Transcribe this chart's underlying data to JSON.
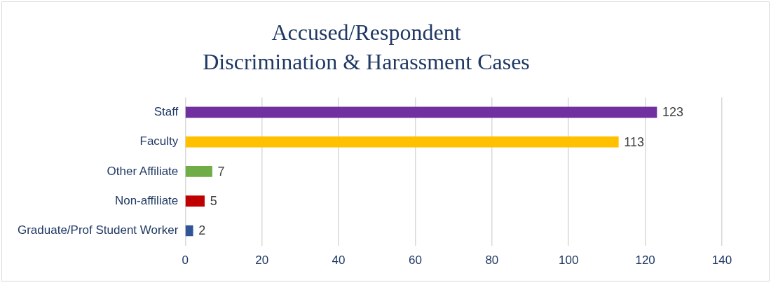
{
  "chart_data": {
    "type": "bar",
    "orientation": "horizontal",
    "title": "Accused/Respondent\nDiscrimination & Harassment Cases",
    "categories": [
      "Staff",
      "Faculty",
      "Other Affiliate",
      "Non-affiliate",
      "Graduate/Prof Student Worker"
    ],
    "values": [
      123,
      113,
      7,
      5,
      2
    ],
    "colors": [
      "#7030a0",
      "#ffc000",
      "#70ad47",
      "#c00000",
      "#2f5597"
    ],
    "xlim": [
      0,
      140
    ],
    "xticks": [
      0,
      20,
      40,
      60,
      80,
      100,
      120,
      140
    ],
    "grid": "x",
    "data_labels": true,
    "legend": false
  }
}
